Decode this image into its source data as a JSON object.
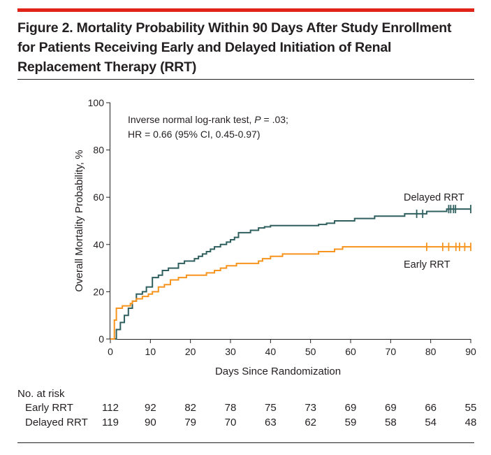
{
  "figure": {
    "title_line1": "Figure 2. Mortality Probability Within 90 Days After Study Enrollment",
    "title_line2": "for Patients Receiving Early and Delayed Initiation of Renal",
    "title_line3": "Replacement Therapy (RRT)",
    "accent_color": "#e2231a"
  },
  "annotation": {
    "line1_prefix": "Inverse normal log-rank test, ",
    "line1_p": "P",
    "line1_suffix": " = .03;",
    "line2": "HR = 0.66 (95% CI, 0.45-0.97)"
  },
  "chart_data": {
    "type": "line",
    "step": true,
    "xlabel": "Days Since Randomization",
    "ylabel": "Overall Mortality Probability, %",
    "xlim": [
      0,
      90
    ],
    "ylim": [
      0,
      100
    ],
    "x_ticks": [
      0,
      10,
      20,
      30,
      40,
      50,
      60,
      70,
      80,
      90
    ],
    "y_ticks": [
      0,
      20,
      40,
      60,
      80,
      100
    ],
    "grid": false,
    "series": [
      {
        "name": "Delayed RRT",
        "color": "#2f5f5f",
        "x": [
          0,
          1.5,
          2.5,
          3.5,
          4.5,
          5.5,
          6.5,
          8,
          9,
          10.5,
          12,
          13,
          14.5,
          17,
          18.5,
          21,
          22,
          23,
          24,
          25,
          26,
          27.5,
          29,
          30,
          31,
          32,
          35,
          37,
          38.5,
          40,
          52,
          54,
          56,
          61,
          66,
          73.5,
          79,
          84,
          90
        ],
        "y": [
          0,
          4,
          7,
          10,
          13,
          16,
          19,
          20,
          22,
          26,
          27,
          29,
          30,
          32,
          33,
          34,
          35,
          36,
          37,
          38,
          39,
          40,
          41,
          42,
          43,
          45,
          46,
          47,
          47.5,
          48,
          48.5,
          49,
          50,
          51,
          52,
          53,
          54,
          55,
          55
        ],
        "censored_x": [
          76.5,
          78,
          84.5,
          85,
          85.7,
          86.2,
          90
        ]
      },
      {
        "name": "Early RRT",
        "color": "#f7941d",
        "x": [
          0,
          1,
          1.5,
          3,
          5,
          5.5,
          6.5,
          8,
          9.5,
          10.5,
          12,
          13.5,
          15,
          17,
          19,
          24,
          26,
          27.5,
          29,
          31.5,
          37,
          38,
          40,
          43,
          52,
          56,
          58,
          76,
          90
        ],
        "y": [
          0,
          8,
          13,
          14,
          15,
          16,
          17,
          18,
          19,
          20,
          22,
          23,
          25,
          26,
          27,
          28,
          29,
          30,
          31,
          32,
          33,
          34,
          35,
          36,
          37,
          38,
          39,
          39,
          39
        ],
        "censored_x": [
          79,
          83,
          84.5,
          86.3,
          87.2,
          88.5,
          90
        ]
      }
    ],
    "series_labels": {
      "delayed": "Delayed RRT",
      "early": "Early RRT"
    }
  },
  "risk_table": {
    "title": "No. at risk",
    "rows": [
      {
        "label": "Early RRT",
        "values": [
          "112",
          "92",
          "82",
          "78",
          "75",
          "73",
          "69",
          "69",
          "66",
          "55"
        ]
      },
      {
        "label": "Delayed RRT",
        "values": [
          "119",
          "90",
          "79",
          "70",
          "63",
          "62",
          "59",
          "58",
          "54",
          "48"
        ]
      }
    ]
  }
}
